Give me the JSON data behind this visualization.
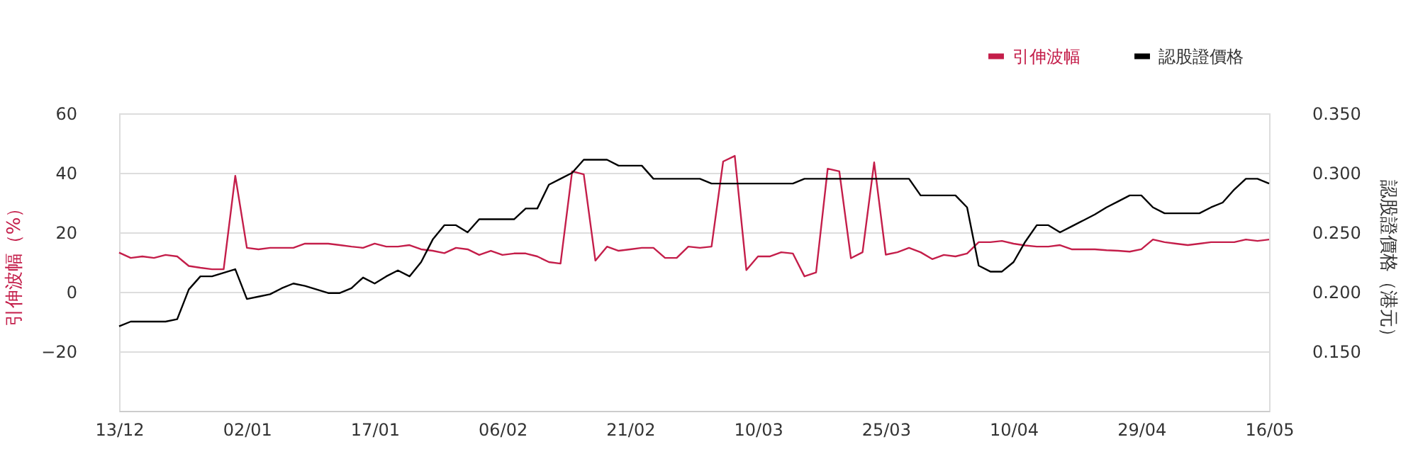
{
  "chart_data": {
    "type": "line",
    "categories": [
      "13/12",
      null,
      null,
      null,
      null,
      null,
      null,
      null,
      null,
      null,
      null,
      "02/01",
      null,
      null,
      null,
      null,
      null,
      null,
      null,
      null,
      null,
      null,
      "17/01",
      null,
      null,
      null,
      null,
      null,
      null,
      null,
      null,
      null,
      null,
      "06/02",
      null,
      null,
      null,
      null,
      null,
      null,
      null,
      null,
      null,
      null,
      "21/02",
      null,
      null,
      null,
      null,
      null,
      null,
      null,
      null,
      null,
      null,
      "10/03",
      null,
      null,
      null,
      null,
      null,
      null,
      null,
      null,
      null,
      null,
      "25/03",
      null,
      null,
      null,
      null,
      null,
      null,
      null,
      null,
      null,
      null,
      "10/04",
      null,
      null,
      null,
      null,
      null,
      null,
      null,
      null,
      null,
      null,
      "29/04",
      null,
      null,
      null,
      null,
      null,
      null,
      null,
      null,
      null,
      null,
      "16/05"
    ],
    "ylabel": "引伸波幅（%）",
    "y2label": "認股證價格（港元）",
    "series": [
      {
        "name": "引伸波幅",
        "color": "#c41e4a",
        "values": [
          13.2,
          11.4,
          11.9,
          11.4,
          12.4,
          11.9,
          8.7,
          8.1,
          7.6,
          7.6,
          39,
          14.8,
          14.3,
          14.8,
          14.8,
          14.8,
          16.2,
          16.2,
          16.2,
          15.7,
          15.2,
          14.8,
          16.2,
          15.2,
          15.2,
          15.7,
          14.3,
          13.8,
          13,
          14.8,
          14.3,
          12.4,
          13.8,
          12.4,
          12.9,
          12.9,
          11.9,
          10,
          9.5,
          40.5,
          39.5,
          10.5,
          15.2,
          13.8,
          14.3,
          14.8,
          14.8,
          11.4,
          11.4,
          15.2,
          14.8,
          15.2,
          43.8,
          45.7,
          7.3,
          11.9,
          11.9,
          13.3,
          12.9,
          5.2,
          6.5,
          41.4,
          40.5,
          11.3,
          13.3,
          43.5,
          12.5,
          13.3,
          14.8,
          13.3,
          11,
          12.4,
          11.9,
          12.9,
          16.7,
          16.7,
          17.1,
          16.2,
          15.6,
          15.2,
          15.2,
          15.7,
          14.3,
          14.3,
          14.3,
          14,
          13.8,
          13.5,
          14.3,
          17.6,
          16.7,
          16.2,
          15.7,
          16.2,
          16.7,
          16.7,
          16.7,
          17.6,
          17.1,
          17.6
        ]
      },
      {
        "name": "認股證價格",
        "color": "#000000",
        "axis": "y2",
        "values": [
          0.171,
          0.175,
          0.175,
          0.175,
          0.175,
          0.177,
          0.202,
          0.213,
          0.213,
          0.216,
          0.219,
          0.194,
          0.196,
          0.198,
          0.203,
          0.207,
          0.205,
          0.202,
          0.199,
          0.199,
          0.203,
          0.212,
          0.207,
          0.213,
          0.218,
          0.213,
          0.225,
          0.244,
          0.256,
          0.256,
          0.25,
          0.261,
          0.261,
          0.261,
          0.261,
          0.27,
          0.27,
          0.29,
          0.295,
          0.3,
          0.311,
          0.311,
          0.311,
          0.306,
          0.306,
          0.306,
          0.295,
          0.295,
          0.295,
          0.295,
          0.295,
          0.291,
          0.291,
          0.291,
          0.291,
          0.291,
          0.291,
          0.291,
          0.291,
          0.295,
          0.295,
          0.295,
          0.295,
          0.295,
          0.295,
          0.295,
          0.295,
          0.295,
          0.295,
          0.281,
          0.281,
          0.281,
          0.281,
          0.271,
          0.222,
          0.217,
          0.217,
          0.225,
          0.242,
          0.256,
          0.256,
          0.25,
          0.255,
          0.26,
          0.265,
          0.271,
          0.276,
          0.281,
          0.281,
          0.271,
          0.266,
          0.266,
          0.266,
          0.266,
          0.271,
          0.275,
          0.286,
          0.295,
          0.295,
          0.291
        ]
      }
    ],
    "ylim": [
      -40,
      60
    ],
    "yticks": [
      -20,
      0,
      20,
      40,
      60
    ],
    "y2lim": [
      0.1,
      0.35
    ],
    "y2ticks": [
      {
        "value": 0.15,
        "label": "0.150"
      },
      {
        "value": 0.2,
        "label": "0.200"
      },
      {
        "value": 0.25,
        "label": "0.250"
      },
      {
        "value": 0.3,
        "label": "0.300"
      },
      {
        "value": 0.35,
        "label": "0.350"
      }
    ],
    "grid": "y",
    "legend": "top right",
    "marker": "none",
    "line_style": "solid"
  }
}
